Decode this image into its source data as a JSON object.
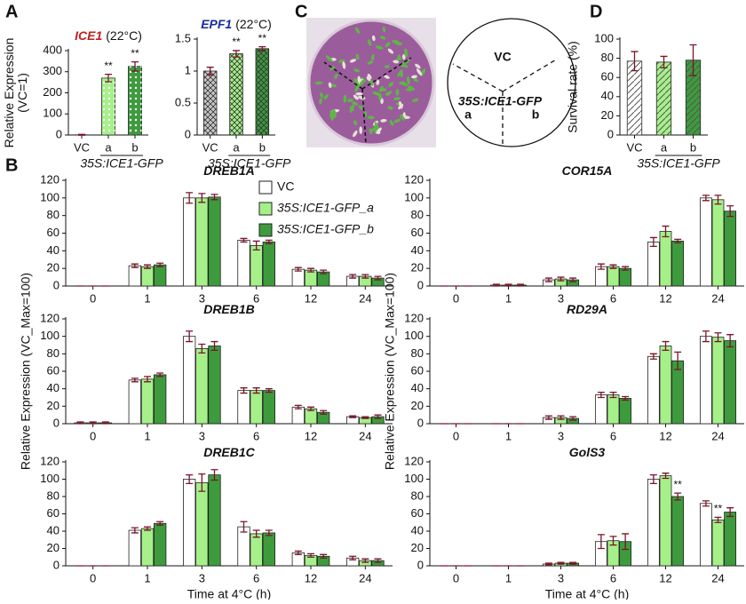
{
  "panel_labels": [
    "A",
    "B",
    "C",
    "D"
  ],
  "panel_c": {
    "labels": [
      "VC",
      "35S:ICE1-GFP",
      "a",
      "b"
    ]
  },
  "chart_data": [
    {
      "type": "bar",
      "title": "ICE1",
      "title_color": "#c0201e",
      "subtitle": "(22°C)",
      "ylabel": [
        "Relative Expression",
        "(VC=1)"
      ],
      "categories": [
        "VC",
        "a",
        "b"
      ],
      "group_label": "35S:ICE1-GFP",
      "values": [
        1,
        270,
        325
      ],
      "errors": [
        2,
        18,
        22
      ],
      "colors": [
        "#ffffff",
        "#a6f08a",
        "#3d9b3d"
      ],
      "hatch": "dots",
      "annotations": [
        null,
        "**",
        "**"
      ],
      "ylim": [
        0,
        400
      ],
      "yticks": [
        0,
        100,
        200,
        300,
        400
      ]
    },
    {
      "type": "bar",
      "title": "EPF1",
      "title_color": "#1a2aa0",
      "subtitle": "(22°C)",
      "categories": [
        "VC",
        "a",
        "b"
      ],
      "group_label": "35S:ICE1-GFP",
      "values": [
        1,
        1.27,
        1.35
      ],
      "errors": [
        0.06,
        0.05,
        0.03
      ],
      "colors": [
        "#c8c8c8",
        "#a6f08a",
        "#3d9b3d"
      ],
      "hatch": "cross",
      "annotations": [
        null,
        "**",
        "**"
      ],
      "ylim": [
        0,
        1.5
      ],
      "yticks": [
        0,
        0.5,
        1,
        1.5
      ]
    },
    {
      "type": "bar",
      "ylabel": [
        "Survival rate (%)"
      ],
      "categories": [
        "VC",
        "a",
        "b"
      ],
      "group_label": "35S:ICE1-GFP",
      "values": [
        77,
        76,
        78
      ],
      "errors": [
        10,
        6,
        16
      ],
      "colors": [
        "#ffffff",
        "#a6f08a",
        "#3d9b3d"
      ],
      "hatch": "diagonal",
      "ylim": [
        0,
        100
      ],
      "yticks": [
        0,
        20,
        40,
        60,
        80,
        100
      ]
    },
    {
      "type": "bar",
      "title": "DREB1A",
      "legend": "upper right",
      "categories": [
        "0",
        "1",
        "3",
        "6",
        "12",
        "24"
      ],
      "series": [
        {
          "name": "VC",
          "color": "#ffffff",
          "values": [
            0,
            23,
            100,
            52,
            19,
            11
          ],
          "errors": [
            0,
            2,
            6,
            2,
            2,
            2
          ]
        },
        {
          "name": "35S:ICE1-GFP_a",
          "color": "#a6f08a",
          "values": [
            0,
            22,
            100,
            46,
            18,
            11
          ],
          "errors": [
            0,
            2,
            5,
            5,
            2,
            2
          ]
        },
        {
          "name": "35S:ICE1-GFP_b",
          "color": "#3d9b3d",
          "values": [
            0,
            24,
            101,
            50,
            16,
            9
          ],
          "errors": [
            0,
            2,
            3,
            2,
            2,
            2
          ]
        }
      ],
      "ylim": [
        0,
        120
      ],
      "yticks": [
        0,
        20,
        40,
        60,
        80,
        100,
        120
      ]
    },
    {
      "type": "bar",
      "title": "COR15A",
      "categories": [
        "0",
        "1",
        "3",
        "6",
        "12",
        "24"
      ],
      "series": [
        {
          "color": "#ffffff",
          "values": [
            0,
            1,
            7,
            22,
            50,
            100
          ],
          "errors": [
            0,
            1,
            2,
            3,
            5,
            3
          ]
        },
        {
          "color": "#a6f08a",
          "values": [
            0,
            1,
            8,
            22,
            62,
            98
          ],
          "errors": [
            0,
            1,
            2,
            2,
            6,
            5
          ]
        },
        {
          "color": "#3d9b3d",
          "values": [
            0,
            1,
            7,
            20,
            51,
            85
          ],
          "errors": [
            0,
            1,
            2,
            2,
            2,
            6
          ]
        }
      ],
      "ylim": [
        0,
        120
      ],
      "yticks": [
        0,
        20,
        40,
        60,
        80,
        100,
        120
      ]
    },
    {
      "type": "bar",
      "title": "DREB1B",
      "ylabel": [
        "Relative Expression (VC_Max=100)"
      ],
      "categories": [
        "0",
        "1",
        "3",
        "6",
        "12",
        "24"
      ],
      "series": [
        {
          "color": "#ffffff",
          "values": [
            1,
            50,
            100,
            38,
            19,
            8
          ],
          "errors": [
            1,
            2,
            6,
            3,
            2,
            1
          ]
        },
        {
          "color": "#a6f08a",
          "values": [
            1,
            51,
            86,
            38,
            17,
            7
          ],
          "errors": [
            1,
            3,
            5,
            3,
            2,
            1
          ]
        },
        {
          "color": "#3d9b3d",
          "values": [
            1,
            56,
            89,
            38,
            13,
            8
          ],
          "errors": [
            1,
            2,
            5,
            2,
            2,
            2
          ]
        }
      ],
      "ylim": [
        0,
        120
      ],
      "yticks": [
        0,
        20,
        40,
        60,
        80,
        100,
        120
      ]
    },
    {
      "type": "bar",
      "title": "RD29A",
      "ylabel": [
        "Relative Expression (VC_Max=100)"
      ],
      "categories": [
        "0",
        "1",
        "3",
        "6",
        "12",
        "24"
      ],
      "series": [
        {
          "color": "#ffffff",
          "values": [
            0,
            0,
            7,
            33,
            77,
            100
          ],
          "errors": [
            0,
            0,
            2,
            3,
            3,
            6
          ]
        },
        {
          "color": "#a6f08a",
          "values": [
            0,
            0,
            7,
            33,
            89,
            99
          ],
          "errors": [
            0,
            0,
            2,
            3,
            5,
            5
          ]
        },
        {
          "color": "#3d9b3d",
          "values": [
            0,
            0,
            6,
            29,
            72,
            95
          ],
          "errors": [
            0,
            0,
            2,
            2,
            10,
            7
          ]
        }
      ],
      "ylim": [
        0,
        120
      ],
      "yticks": [
        0,
        20,
        40,
        60,
        80,
        100,
        120
      ]
    },
    {
      "type": "bar",
      "title": "DREB1C",
      "xlabel": "Time at 4°C (h)",
      "categories": [
        "0",
        "1",
        "3",
        "6",
        "12",
        "24"
      ],
      "series": [
        {
          "color": "#ffffff",
          "values": [
            0,
            41,
            100,
            45,
            15,
            9
          ],
          "errors": [
            0,
            3,
            5,
            6,
            2,
            2
          ]
        },
        {
          "color": "#a6f08a",
          "values": [
            0,
            43,
            96,
            37,
            12,
            6
          ],
          "errors": [
            0,
            2,
            10,
            4,
            2,
            2
          ]
        },
        {
          "color": "#3d9b3d",
          "values": [
            0,
            49,
            105,
            38,
            11,
            6
          ],
          "errors": [
            0,
            2,
            6,
            3,
            2,
            2
          ]
        }
      ],
      "ylim": [
        0,
        120
      ],
      "yticks": [
        0,
        20,
        40,
        60,
        80,
        100,
        120
      ]
    },
    {
      "type": "bar",
      "title": "GolS3",
      "xlabel": "Time at 4°C (h)",
      "categories": [
        "0",
        "1",
        "3",
        "6",
        "12",
        "24"
      ],
      "series": [
        {
          "color": "#ffffff",
          "values": [
            0,
            0,
            2,
            28,
            100,
            72
          ],
          "errors": [
            0,
            0,
            1,
            8,
            5,
            3
          ]
        },
        {
          "color": "#a6f08a",
          "values": [
            0,
            0,
            3,
            29,
            104,
            53
          ],
          "errors": [
            0,
            0,
            1,
            5,
            3,
            3
          ],
          "annotations": [
            null,
            null,
            null,
            null,
            null,
            "**"
          ]
        },
        {
          "color": "#3d9b3d",
          "values": [
            0,
            0,
            3,
            28,
            80,
            62
          ],
          "errors": [
            0,
            0,
            1,
            9,
            4,
            5
          ],
          "annotations": [
            null,
            null,
            null,
            null,
            "**",
            null
          ]
        }
      ],
      "ylim": [
        0,
        120
      ],
      "yticks": [
        0,
        20,
        40,
        60,
        80,
        100,
        120
      ]
    }
  ]
}
